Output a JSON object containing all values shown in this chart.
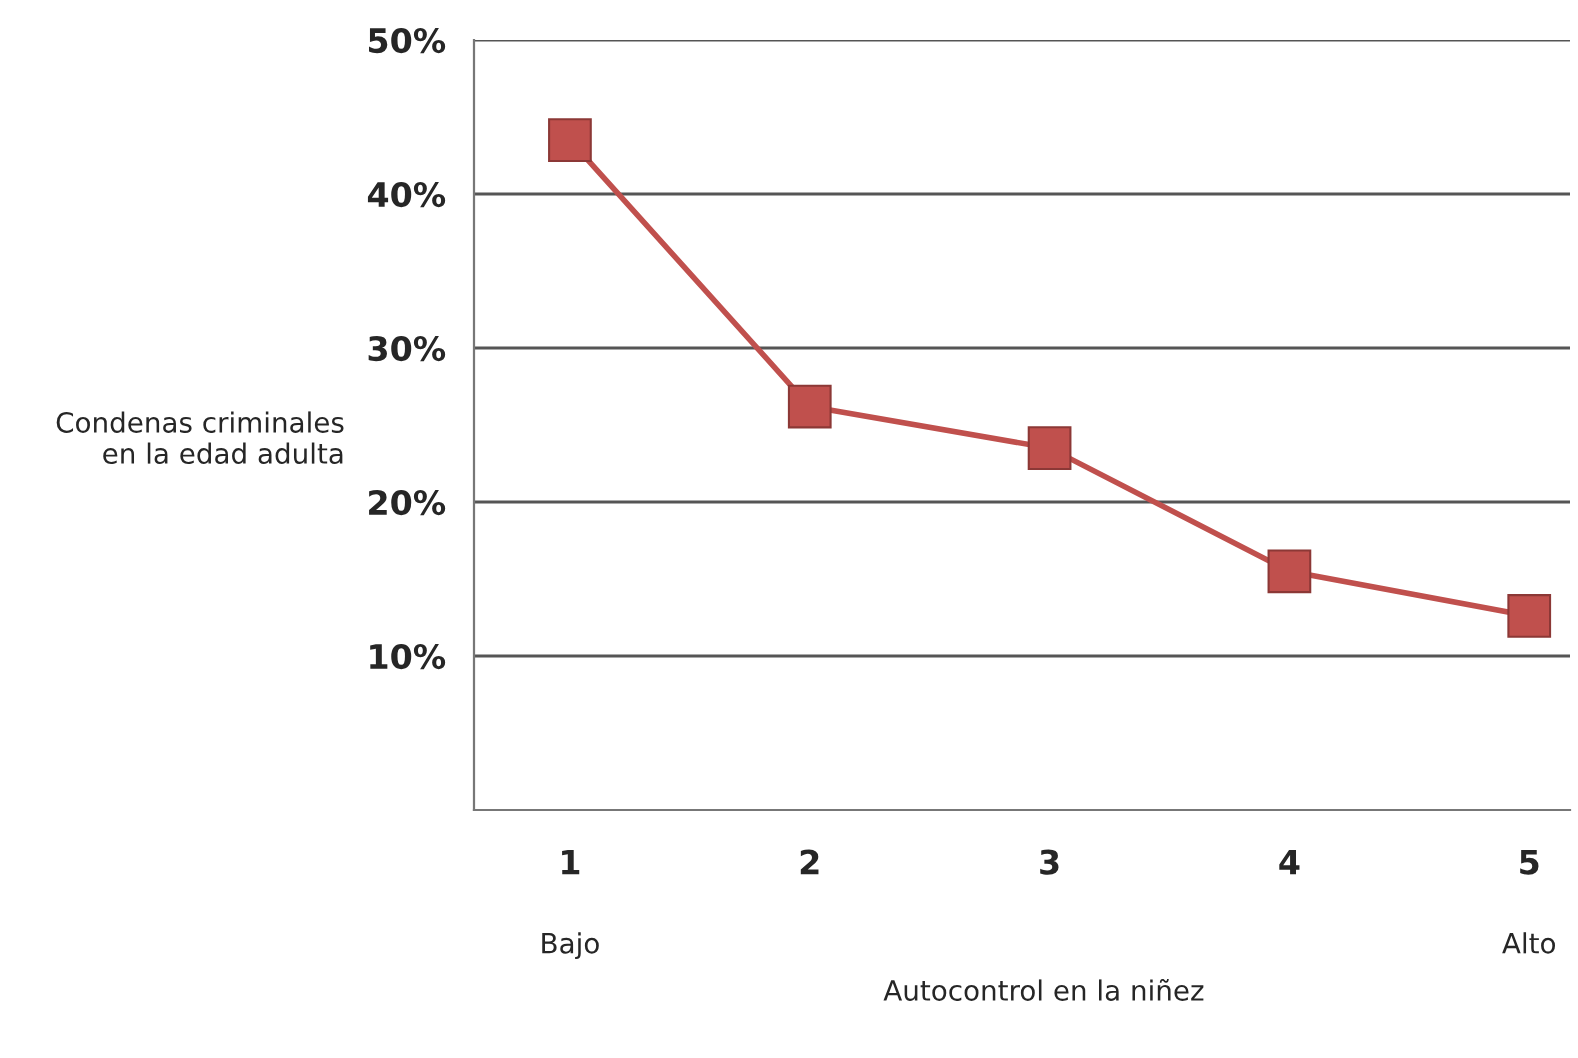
{
  "chart_data": {
    "type": "line",
    "categories": [
      "1",
      "2",
      "3",
      "4",
      "5"
    ],
    "series": [
      {
        "color": "#c0504d",
        "values": [
          43.5,
          26.2,
          23.5,
          15.5,
          12.6
        ]
      }
    ],
    "ylim": [
      0,
      50
    ],
    "yticks": [
      {
        "value": 10,
        "label": "10%"
      },
      {
        "value": 20,
        "label": "20%"
      },
      {
        "value": 30,
        "label": "30%"
      },
      {
        "value": 40,
        "label": "40%"
      },
      {
        "value": 50,
        "label": "50%"
      }
    ],
    "ylabel": "Condenas criminales\nen la edad adulta",
    "xlabel": "Autocontrol en la niñez",
    "annotations": [
      "Bajo",
      "Alto"
    ],
    "grid": "y",
    "marker": "square",
    "line_style": "solid"
  }
}
